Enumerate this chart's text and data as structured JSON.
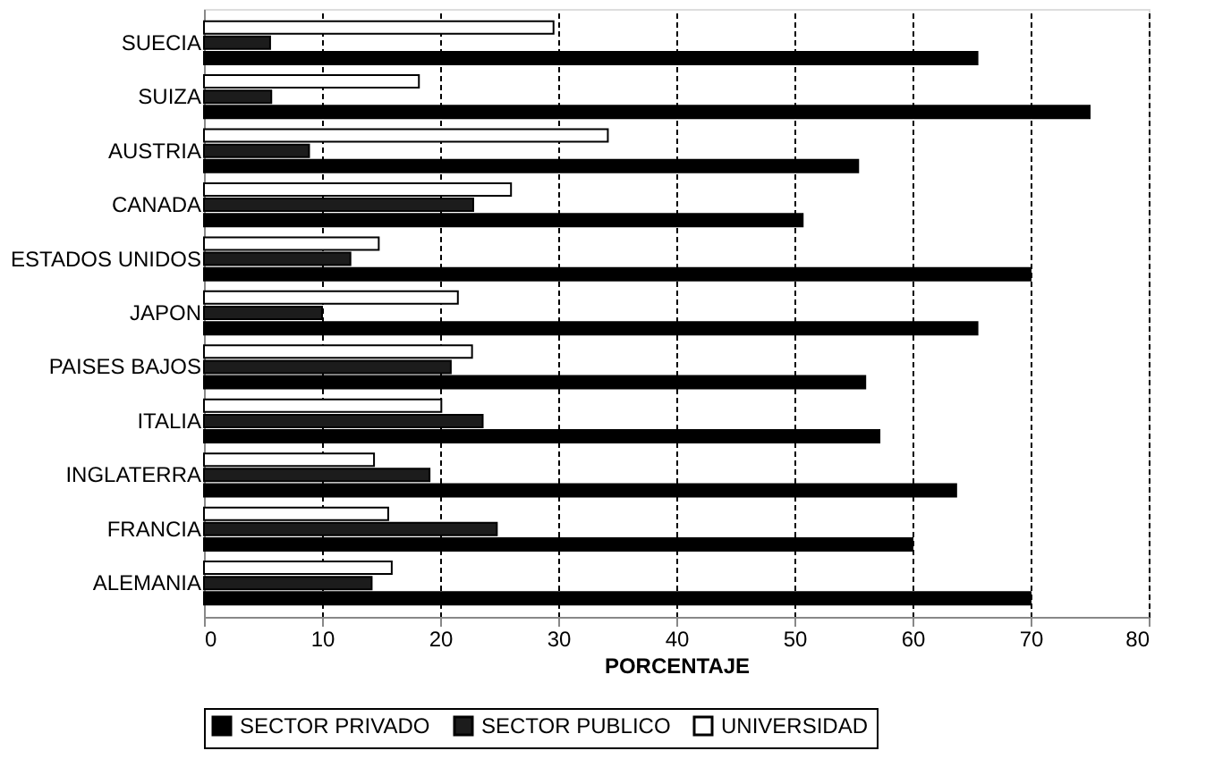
{
  "chart_data": {
    "type": "bar",
    "orientation": "horizontal",
    "xlabel": "PORCENTAJE",
    "categories": [
      "SUECIA",
      "SUIZA",
      "AUSTRIA",
      "CANADA",
      "ESTADOS UNIDOS",
      "JAPON",
      "PAISES BAJOS",
      "ITALIA",
      "INGLATERRA",
      "FRANCIA",
      "ALEMANIA"
    ],
    "series": [
      {
        "name": "SECTOR PRIVADO",
        "color": "#000000",
        "values": [
          65.5,
          75,
          55.4,
          50.7,
          70,
          65.5,
          56,
          57.2,
          63.7,
          60,
          70
        ]
      },
      {
        "name": "SECTOR PUBLICO",
        "color": "#1c1c1c",
        "values": [
          5.6,
          5.7,
          8.9,
          22.8,
          12.4,
          10,
          20.9,
          23.6,
          19.1,
          24.8,
          14.2
        ]
      },
      {
        "name": "UNIVERSIDAD",
        "color": "#ffffff",
        "values": [
          29.6,
          18.2,
          34.2,
          26,
          14.8,
          21.5,
          22.7,
          20.1,
          14.4,
          15.6,
          15.9
        ]
      }
    ],
    "xlim": [
      0,
      80
    ],
    "xticks": [
      0,
      10,
      20,
      30,
      40,
      50,
      60,
      70,
      80
    ],
    "grid": "x",
    "legend": "bottom"
  }
}
